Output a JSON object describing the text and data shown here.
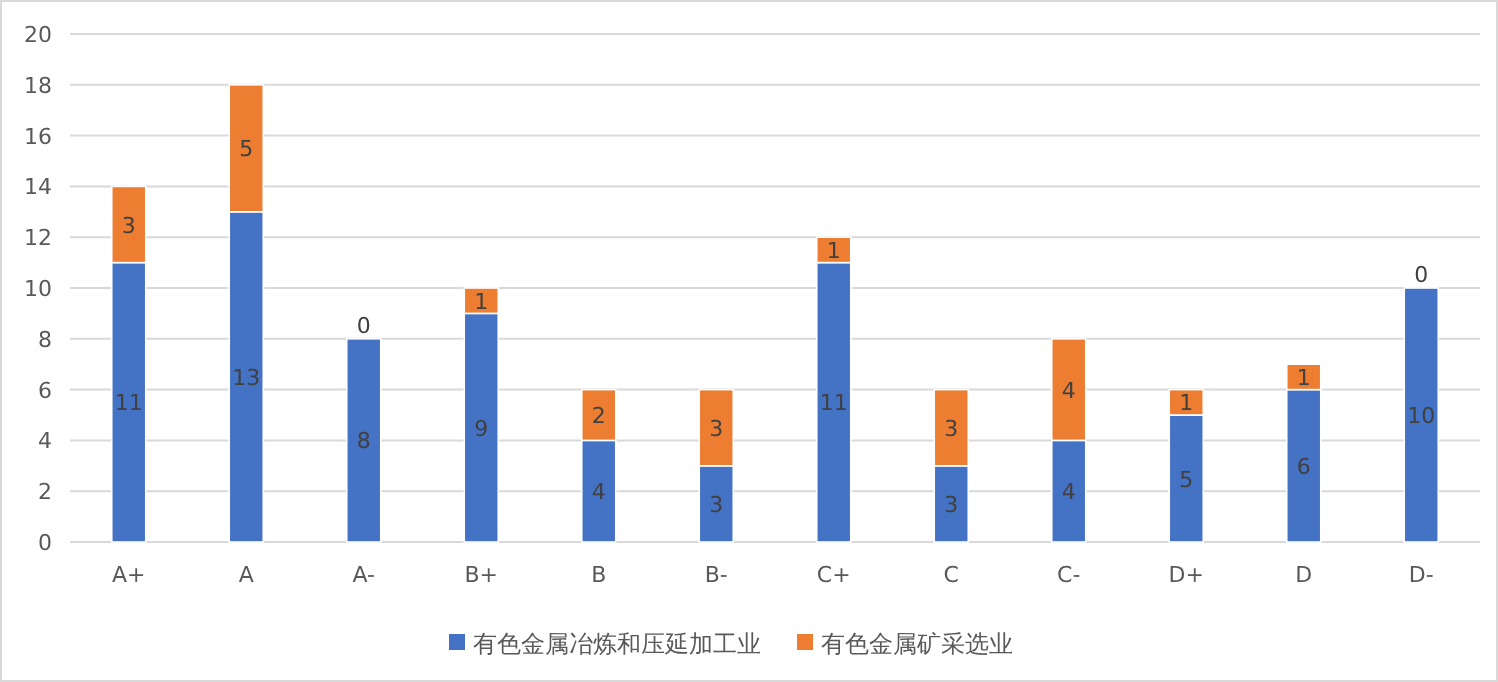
{
  "chart_data": {
    "type": "bar",
    "stacked": true,
    "categories": [
      "A+",
      "A",
      "A-",
      "B+",
      "B",
      "B-",
      "C+",
      "C",
      "C-",
      "D+",
      "D",
      "D-"
    ],
    "series": [
      {
        "name": "有色金属冶炼和压延加工业",
        "color": "#4472c4",
        "values": [
          11,
          13,
          8,
          9,
          4,
          3,
          11,
          3,
          4,
          5,
          6,
          10
        ]
      },
      {
        "name": "有色金属矿采选业",
        "color": "#ed7d31",
        "values": [
          3,
          5,
          0,
          1,
          2,
          3,
          1,
          3,
          4,
          1,
          1,
          0
        ]
      }
    ],
    "ylim": [
      0,
      20
    ],
    "yticks": [
      0,
      2,
      4,
      6,
      8,
      10,
      12,
      14,
      16,
      18,
      20
    ],
    "grid": "y",
    "legend": "bottom",
    "data_labels": true
  }
}
